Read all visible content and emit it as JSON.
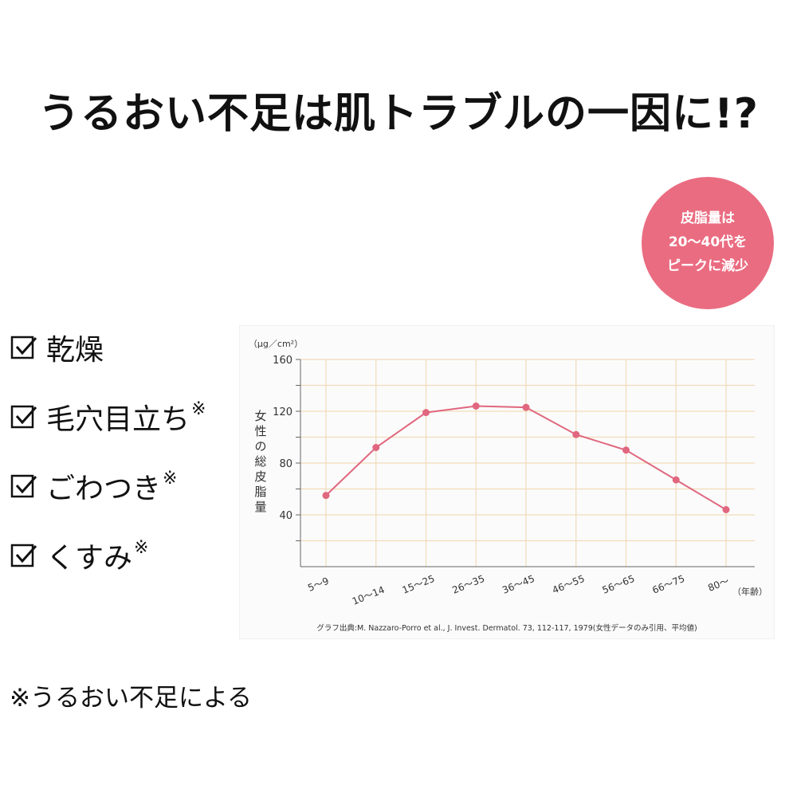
{
  "headline": "うるおい不足は肌トラブルの一因に!?",
  "badge": {
    "lines": [
      "皮脂量は",
      "20〜40代を",
      "ピークに減少"
    ],
    "color": "#ea6c81"
  },
  "checklist": [
    {
      "label": "乾燥",
      "mark": ""
    },
    {
      "label": "毛穴目立ち",
      "mark": "※"
    },
    {
      "label": "ごわつき",
      "mark": "※"
    },
    {
      "label": "くすみ",
      "mark": "※"
    }
  ],
  "footnote": "※うるおい不足による",
  "chart_data": {
    "type": "line",
    "categories": [
      "5〜9",
      "10〜14",
      "15〜25",
      "26〜35",
      "36〜45",
      "46〜55",
      "56〜65",
      "66〜75",
      "80〜"
    ],
    "series": [
      {
        "values": [
          55,
          92,
          119,
          124,
          123,
          102,
          90,
          67,
          44
        ],
        "color": "#e0677e"
      }
    ],
    "y_unit": "（μg／cm²）",
    "ylabel": "女性の総皮脂量",
    "x_unit": "（年齢）",
    "ylim": [
      0,
      160
    ],
    "yticks": [
      40,
      80,
      120,
      160
    ],
    "grid": true,
    "grid_color": "#f1dcba",
    "source": "グラフ出典:M. Nazzaro-Porro et al., J. Invest. Dermatol. 73, 112-117, 1979(女性データのみ引用、平均値)"
  }
}
